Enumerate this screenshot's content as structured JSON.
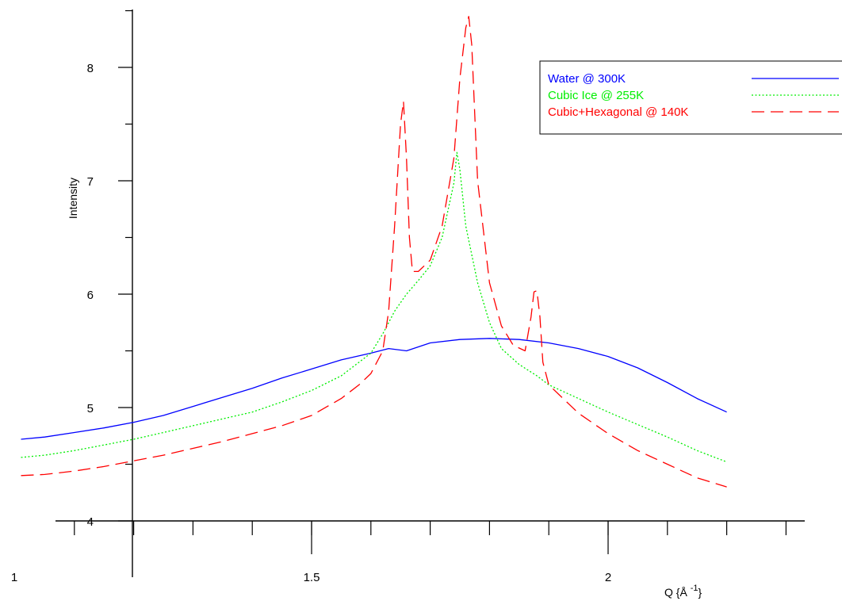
{
  "chart_data": {
    "type": "line",
    "title": "",
    "xlabel": "Q {Å",
    "xlabel_sup": "-1",
    "xlabel_close": "}",
    "ylabel": "Intensity",
    "xlim": [
      1.0,
      2.38
    ],
    "ylim": [
      4.0,
      8.5
    ],
    "x_ticks": [
      1,
      1.5,
      2
    ],
    "x_tick_labels": [
      "1",
      "1.5",
      "2"
    ],
    "y_ticks": [
      4,
      5,
      6,
      7,
      8
    ],
    "y_tick_labels": [
      "4",
      "5",
      "6",
      "7",
      "8"
    ],
    "legend_placement": "top-right",
    "grid": false,
    "series": [
      {
        "name": "Water  @  300K",
        "color": "#0000ff",
        "style": "solid",
        "x": [
          1.01,
          1.05,
          1.1,
          1.15,
          1.2,
          1.25,
          1.3,
          1.35,
          1.4,
          1.45,
          1.5,
          1.55,
          1.6,
          1.63,
          1.66,
          1.7,
          1.75,
          1.8,
          1.85,
          1.9,
          1.95,
          2.0,
          2.05,
          2.1,
          2.15,
          2.2
        ],
        "y": [
          4.72,
          4.74,
          4.78,
          4.82,
          4.87,
          4.93,
          5.01,
          5.09,
          5.17,
          5.26,
          5.34,
          5.42,
          5.48,
          5.52,
          5.5,
          5.57,
          5.6,
          5.61,
          5.6,
          5.57,
          5.52,
          5.45,
          5.35,
          5.22,
          5.08,
          4.96
        ]
      },
      {
        "name": "Cubic  Ice  @  255K",
        "color": "#00ee00",
        "style": "dotted",
        "x": [
          1.01,
          1.05,
          1.1,
          1.15,
          1.2,
          1.25,
          1.3,
          1.35,
          1.4,
          1.45,
          1.5,
          1.55,
          1.6,
          1.62,
          1.64,
          1.66,
          1.68,
          1.7,
          1.72,
          1.74,
          1.745,
          1.75,
          1.76,
          1.78,
          1.8,
          1.82,
          1.85,
          1.88,
          1.9,
          1.95,
          2.0,
          2.05,
          2.1,
          2.15,
          2.2
        ],
        "y": [
          4.56,
          4.58,
          4.62,
          4.67,
          4.72,
          4.78,
          4.84,
          4.9,
          4.96,
          5.05,
          5.15,
          5.28,
          5.48,
          5.65,
          5.85,
          6.0,
          6.12,
          6.25,
          6.5,
          6.98,
          7.25,
          7.1,
          6.6,
          6.1,
          5.75,
          5.52,
          5.38,
          5.28,
          5.2,
          5.08,
          4.96,
          4.85,
          4.74,
          4.62,
          4.52
        ]
      },
      {
        "name": "Cubic+Hexagonal  @  140K",
        "color": "#ff0000",
        "style": "dashed",
        "x": [
          1.01,
          1.05,
          1.1,
          1.15,
          1.2,
          1.25,
          1.3,
          1.35,
          1.4,
          1.45,
          1.5,
          1.55,
          1.58,
          1.6,
          1.62,
          1.63,
          1.64,
          1.65,
          1.655,
          1.66,
          1.665,
          1.67,
          1.68,
          1.7,
          1.72,
          1.74,
          1.75,
          1.76,
          1.765,
          1.77,
          1.78,
          1.8,
          1.82,
          1.84,
          1.86,
          1.87,
          1.875,
          1.88,
          1.885,
          1.89,
          1.9,
          1.95,
          2.0,
          2.05,
          2.1,
          2.15,
          2.2
        ],
        "y": [
          4.4,
          4.41,
          4.44,
          4.48,
          4.53,
          4.58,
          4.64,
          4.7,
          4.77,
          4.84,
          4.93,
          5.08,
          5.2,
          5.3,
          5.5,
          5.85,
          6.6,
          7.5,
          7.7,
          7.2,
          6.5,
          6.2,
          6.2,
          6.3,
          6.6,
          7.2,
          7.9,
          8.35,
          8.45,
          8.2,
          7.0,
          6.1,
          5.72,
          5.55,
          5.5,
          5.8,
          6.02,
          6.03,
          5.8,
          5.4,
          5.2,
          4.95,
          4.77,
          4.62,
          4.5,
          4.38,
          4.3
        ]
      }
    ]
  }
}
